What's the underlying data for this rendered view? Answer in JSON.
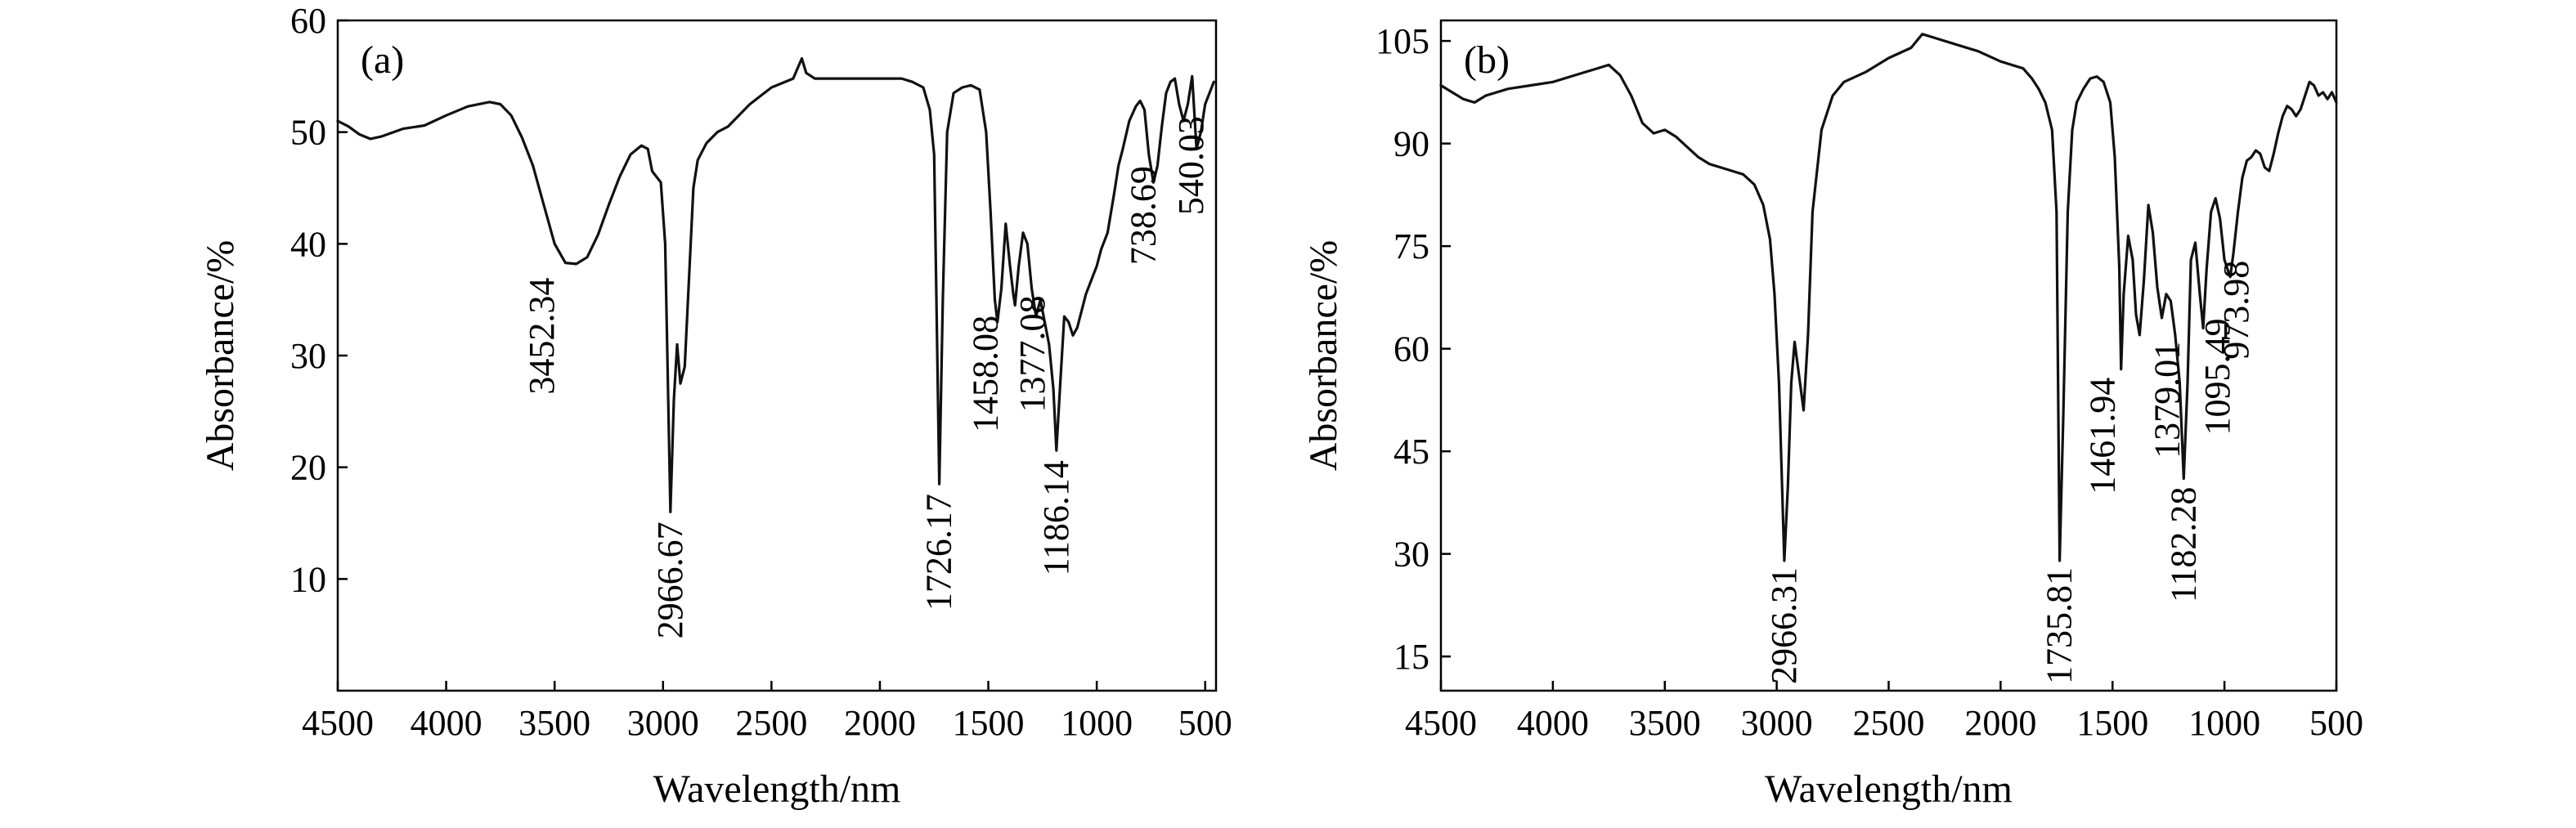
{
  "chart_data": [
    {
      "type": "line",
      "panel_label": "(a)",
      "xlabel": "Wavelength/nm",
      "ylabel": "Absorbance/%",
      "xlim": [
        4500,
        450
      ],
      "ylim": [
        0,
        60
      ],
      "x_ticks": [
        4500,
        4000,
        3500,
        3000,
        2500,
        2000,
        1500,
        1000,
        500
      ],
      "y_ticks": [
        10,
        20,
        30,
        40,
        50,
        60
      ],
      "y_tick_labels": [
        "10",
        "20",
        "30",
        "40",
        "50",
        "60"
      ],
      "grid": false,
      "series": [
        {
          "x": [
            4500,
            4450,
            4400,
            4350,
            4300,
            4200,
            4100,
            4000,
            3900,
            3800,
            3750,
            3700,
            3650,
            3600,
            3550,
            3500,
            3450,
            3400,
            3350,
            3300,
            3250,
            3200,
            3150,
            3100,
            3070,
            3050,
            3030,
            3010,
            2990,
            2966,
            2950,
            2935,
            2920,
            2900,
            2880,
            2860,
            2840,
            2800,
            2750,
            2700,
            2600,
            2500,
            2400,
            2360,
            2340,
            2300,
            2200,
            2100,
            2000,
            1900,
            1850,
            1800,
            1770,
            1750,
            1726,
            1710,
            1690,
            1660,
            1620,
            1580,
            1540,
            1510,
            1490,
            1470,
            1458,
            1440,
            1420,
            1400,
            1385,
            1377,
            1360,
            1340,
            1320,
            1300,
            1280,
            1260,
            1240,
            1220,
            1200,
            1186,
            1170,
            1150,
            1130,
            1110,
            1090,
            1070,
            1050,
            1020,
            1000,
            980,
            950,
            920,
            900,
            880,
            850,
            820,
            800,
            780,
            760,
            739,
            720,
            700,
            680,
            660,
            640,
            620,
            600,
            580,
            560,
            540,
            520,
            500,
            480,
            460
          ],
          "y": [
            51.0,
            50.5,
            49.8,
            49.4,
            49.6,
            50.3,
            50.6,
            51.5,
            52.3,
            52.7,
            52.5,
            51.5,
            49.5,
            47.0,
            43.5,
            40.0,
            38.3,
            38.2,
            38.8,
            40.8,
            43.5,
            46.0,
            48.0,
            48.8,
            48.5,
            46.5,
            46.0,
            45.5,
            40.0,
            16.0,
            26.0,
            31.0,
            27.5,
            29.0,
            37.0,
            45.0,
            47.5,
            49.0,
            50.0,
            50.5,
            52.5,
            54.0,
            54.8,
            56.6,
            55.3,
            54.8,
            54.8,
            54.8,
            54.8,
            54.8,
            54.5,
            54.0,
            52.0,
            48.0,
            18.5,
            35.0,
            50.0,
            53.5,
            54.0,
            54.2,
            53.8,
            50.0,
            43.0,
            35.0,
            33.0,
            36.0,
            41.8,
            38.0,
            35.5,
            34.5,
            38.0,
            41.0,
            40.0,
            36.0,
            33.5,
            35.0,
            33.0,
            31.0,
            27.0,
            21.5,
            27.0,
            33.5,
            33.0,
            31.8,
            32.5,
            34.0,
            35.5,
            37.0,
            38.0,
            39.5,
            41.0,
            44.5,
            47.0,
            48.5,
            51.0,
            52.3,
            52.8,
            52.0,
            48.0,
            45.5,
            47.0,
            50.5,
            53.5,
            54.5,
            54.8,
            52.5,
            51.0,
            52.5,
            55.0,
            48.5,
            50.0,
            52.5,
            53.5,
            54.5
          ]
        }
      ],
      "annotations": [
        {
          "text": "3452.34",
          "x": 3452,
          "y": 38.3
        },
        {
          "text": "2966.67",
          "x": 2966,
          "y": 16.0
        },
        {
          "text": "1726.17",
          "x": 1726,
          "y": 18.5
        },
        {
          "text": "1458.08",
          "x": 1458,
          "y": 33.0
        },
        {
          "text": "1377.08",
          "x": 1377,
          "y": 34.5
        },
        {
          "text": "1186.14",
          "x": 1186,
          "y": 21.5
        },
        {
          "text": "738.69",
          "x": 739,
          "y": 45.5
        },
        {
          "text": "540.03",
          "x": 540,
          "y": 48.5
        }
      ]
    },
    {
      "type": "line",
      "panel_label": "(b)",
      "xlabel": "Wavelength/nm",
      "ylabel": "Absorbance/%",
      "xlim": [
        4500,
        500
      ],
      "ylim": [
        10,
        108
      ],
      "x_ticks": [
        4500,
        4000,
        3500,
        3000,
        2500,
        2000,
        1500,
        1000,
        500
      ],
      "y_ticks": [
        15,
        30,
        45,
        60,
        75,
        90,
        105
      ],
      "y_tick_labels": [
        "15",
        "30",
        "45",
        "60",
        "75",
        "90",
        "105"
      ],
      "grid": false,
      "series": [
        {
          "x": [
            4500,
            4450,
            4400,
            4350,
            4300,
            4200,
            4100,
            4000,
            3900,
            3800,
            3750,
            3700,
            3650,
            3600,
            3550,
            3500,
            3450,
            3400,
            3350,
            3300,
            3250,
            3200,
            3150,
            3100,
            3060,
            3030,
            3010,
            2990,
            2966,
            2950,
            2935,
            2920,
            2900,
            2880,
            2860,
            2840,
            2800,
            2750,
            2700,
            2600,
            2500,
            2400,
            2350,
            2300,
            2200,
            2100,
            2000,
            1900,
            1860,
            1830,
            1800,
            1770,
            1750,
            1736,
            1720,
            1700,
            1680,
            1660,
            1630,
            1600,
            1570,
            1540,
            1510,
            1490,
            1470,
            1462,
            1450,
            1430,
            1410,
            1395,
            1379,
            1360,
            1340,
            1320,
            1300,
            1280,
            1260,
            1240,
            1220,
            1200,
            1182,
            1165,
            1150,
            1130,
            1110,
            1095,
            1080,
            1060,
            1040,
            1020,
            1000,
            985,
            974,
            960,
            940,
            920,
            900,
            880,
            860,
            840,
            820,
            800,
            780,
            760,
            740,
            720,
            700,
            680,
            660,
            640,
            620,
            600,
            580,
            560,
            540,
            520,
            500
          ],
          "y": [
            98.5,
            97.5,
            96.5,
            96.0,
            97.0,
            98.0,
            98.5,
            99.0,
            100.0,
            101.0,
            101.5,
            100.0,
            97.0,
            93.0,
            91.5,
            92.0,
            91.0,
            89.5,
            88.0,
            87.0,
            86.5,
            86.0,
            85.5,
            84.0,
            81.0,
            76.0,
            68.0,
            55.0,
            29.0,
            40.0,
            55.0,
            61.0,
            56.0,
            51.0,
            62.0,
            80.0,
            92.0,
            97.0,
            99.0,
            100.5,
            102.5,
            104.0,
            106.0,
            105.5,
            104.5,
            103.5,
            102.0,
            101.0,
            99.5,
            98.0,
            96.0,
            92.0,
            80.0,
            29.0,
            50.0,
            80.0,
            92.0,
            96.0,
            98.0,
            99.5,
            99.8,
            99.0,
            96.0,
            88.0,
            72.0,
            57.0,
            68.0,
            76.5,
            73.0,
            65.0,
            62.0,
            70.0,
            81.0,
            77.0,
            69.0,
            64.5,
            68.0,
            67.0,
            62.0,
            55.0,
            41.0,
            55.0,
            73.0,
            75.5,
            68.0,
            63.0,
            71.5,
            80.0,
            82.0,
            79.0,
            73.0,
            71.5,
            70.5,
            74.0,
            80.0,
            85.0,
            87.5,
            88.0,
            89.0,
            88.5,
            86.5,
            86.0,
            88.5,
            91.5,
            94.0,
            95.5,
            95.0,
            94.0,
            95.0,
            97.0,
            99.0,
            98.5,
            97.0,
            97.5,
            96.5,
            97.5,
            96.0
          ]
        }
      ],
      "annotations": [
        {
          "text": "2966.31",
          "x": 2966,
          "y": 29.0
        },
        {
          "text": "1735.81",
          "x": 1736,
          "y": 29.0
        },
        {
          "text": "1461.94",
          "x": 1462,
          "y": 57.0
        },
        {
          "text": "1379.01",
          "x": 1379,
          "y": 62.0
        },
        {
          "text": "1182.28",
          "x": 1182,
          "y": 41.0
        },
        {
          "text": "1095.49",
          "x": 1095,
          "y": 63.0
        },
        {
          "text": "973.98",
          "x": 974,
          "y": 70.5
        }
      ]
    }
  ]
}
